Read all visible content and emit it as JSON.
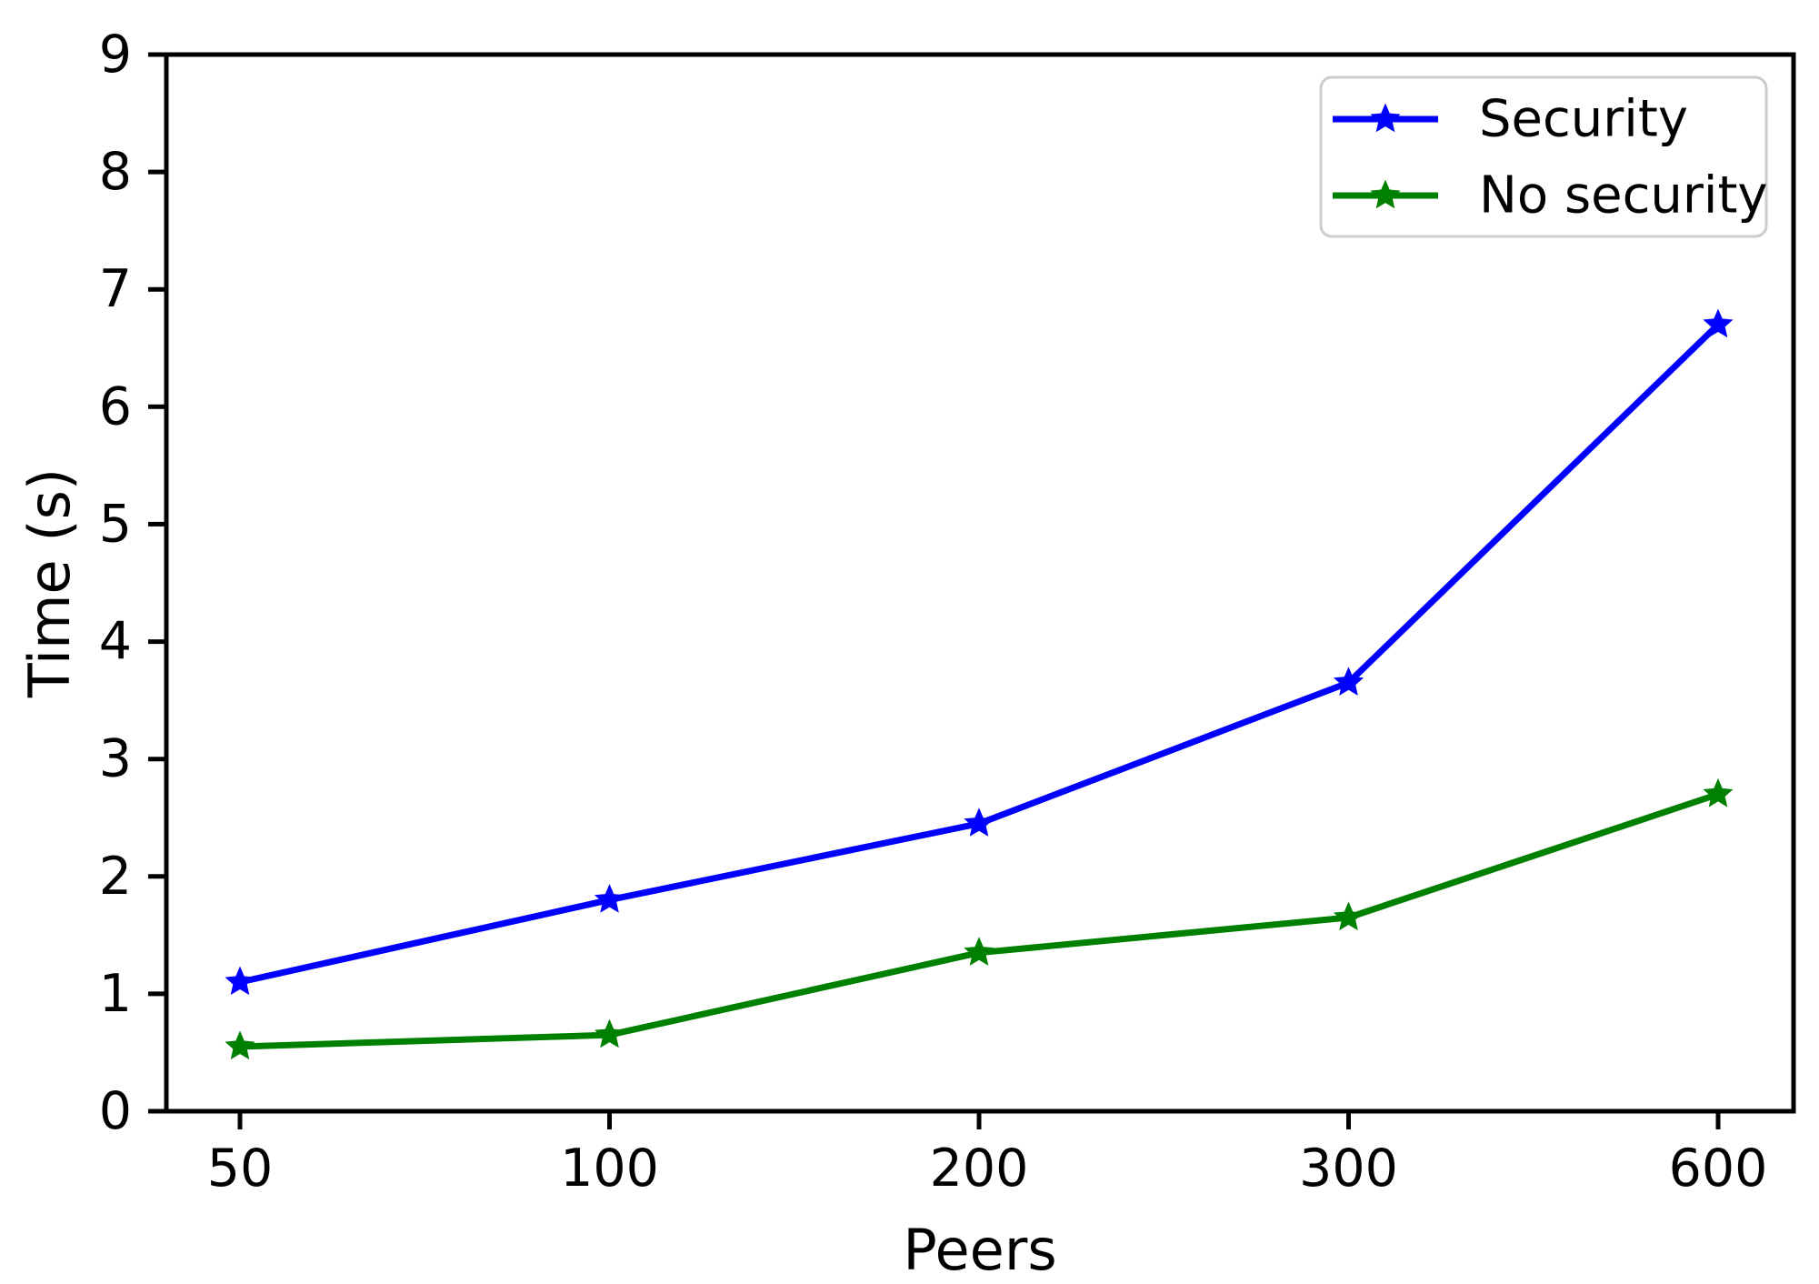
{
  "figure": {
    "background": "#ffffff"
  },
  "chart_data": {
    "type": "line",
    "title": "",
    "xlabel": "Peers",
    "ylabel": "Time (s)",
    "categories": [
      "50",
      "100",
      "200",
      "300",
      "600"
    ],
    "series": [
      {
        "name": "Security",
        "color": "#0000ff",
        "marker": "star",
        "values": [
          1.1,
          1.8,
          2.45,
          3.65,
          6.7
        ]
      },
      {
        "name": "No security",
        "color": "#008000",
        "marker": "star",
        "values": [
          0.55,
          0.65,
          1.35,
          1.65,
          2.7
        ]
      }
    ],
    "ylim": [
      0,
      9
    ],
    "yticks": [
      0,
      1,
      2,
      3,
      4,
      5,
      6,
      7,
      8,
      9
    ],
    "grid": false,
    "axis_color": "#000000",
    "legend": {
      "position": "top-right",
      "background": "#ffffff",
      "border_color": "#cccccc",
      "entries": [
        "Security",
        "No security"
      ]
    }
  }
}
